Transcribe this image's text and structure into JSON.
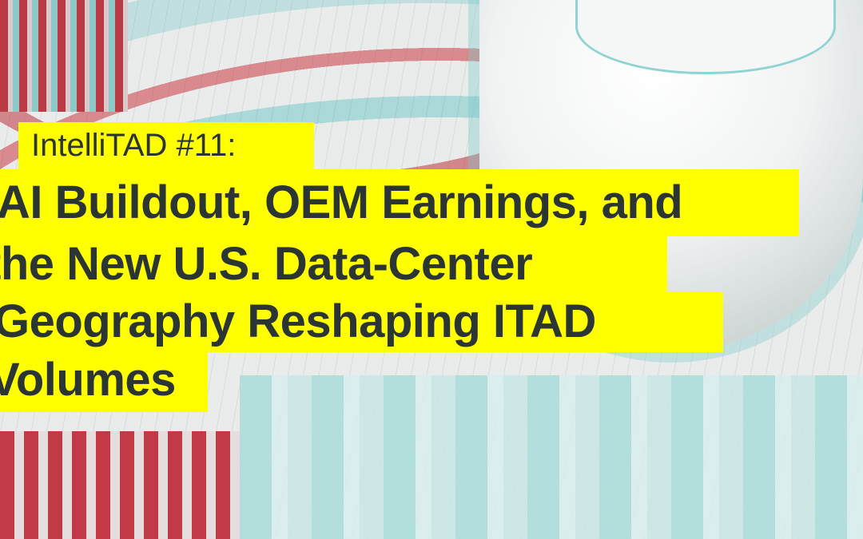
{
  "title": {
    "series_label": "IntelliTAD #11:",
    "lines": [
      "AI Buildout, OEM Earnings, and",
      "the New U.S. Data-Center",
      "Geography Reshaping ITAD",
      "Volumes"
    ]
  },
  "colors": {
    "highlight": "#ffff00",
    "text": "#2b3533",
    "accent_red": "#c23a45",
    "accent_teal": "#8fd4d2"
  }
}
